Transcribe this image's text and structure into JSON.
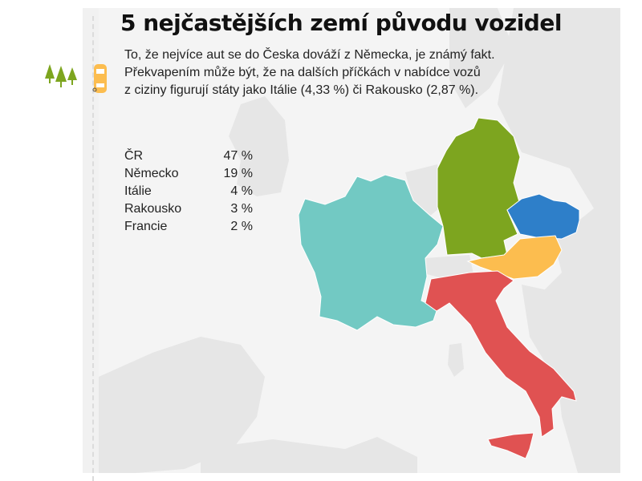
{
  "title": "5 nejčastějších zemí původu vozidel",
  "subtitle_lines": [
    "To, že nejvíce aut se do Česka dováží z Německa, je známý fakt.",
    "Překvapením může být, že na dalších příčkách v nabídce vozů",
    "z ciziny figurují státy jako Itálie (4,33 %) či Rakousko (2,87 %)."
  ],
  "stats": [
    {
      "country": "ČR",
      "value": "47 %"
    },
    {
      "country": "Německo",
      "value": "19 %"
    },
    {
      "country": "Itálie",
      "value": "4 %"
    },
    {
      "country": "Rakousko",
      "value": "3 %"
    },
    {
      "country": "Francie",
      "value": "2 %"
    }
  ],
  "colors": {
    "czech": "#2e7fc9",
    "germany": "#7da51f",
    "austria": "#fcbd4f",
    "italy": "#e05252",
    "france": "#72c9c3",
    "land": "#e6e6e6",
    "sea": "#f4f4f4",
    "trees": "#7da51f",
    "car": "#fcbd4f"
  }
}
